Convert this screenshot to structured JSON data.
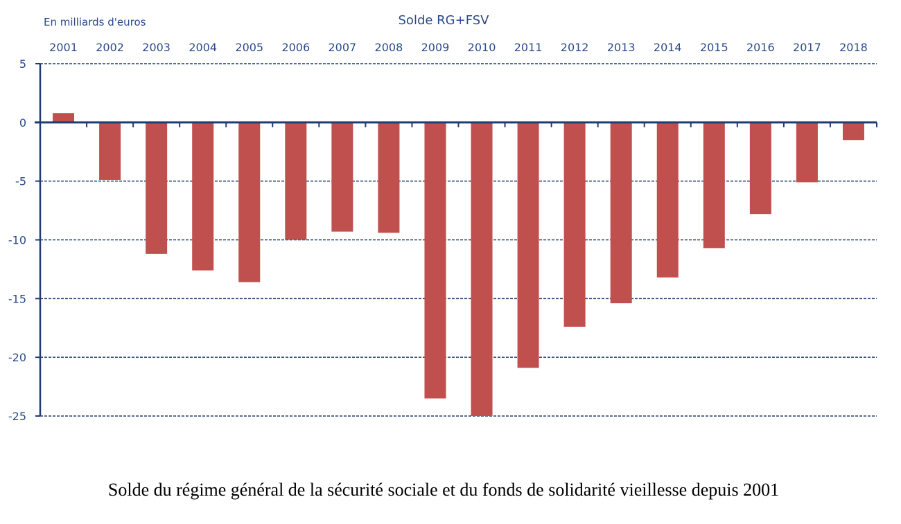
{
  "chart_data": {
    "type": "bar",
    "title": "Solde RG+FSV",
    "ylabel": "En milliards d'euros",
    "xlabel": "",
    "caption": "Solde du régime général de la sécurité sociale et du fonds de solidarité vieillesse depuis 2001",
    "categories": [
      "2001",
      "2002",
      "2003",
      "2004",
      "2005",
      "2006",
      "2007",
      "2008",
      "2009",
      "2010",
      "2011",
      "2012",
      "2013",
      "2014",
      "2015",
      "2016",
      "2017",
      "2018"
    ],
    "values": [
      0.8,
      -4.9,
      -11.2,
      -12.6,
      -13.6,
      -10.0,
      -9.3,
      -9.4,
      -23.5,
      -25.0,
      -20.9,
      -17.4,
      -15.4,
      -13.2,
      -10.7,
      -7.8,
      -5.1,
      -1.5
    ],
    "ylim": [
      -25,
      5
    ],
    "yticks": [
      5,
      0,
      -5,
      -10,
      -15,
      -20,
      -25
    ],
    "grid": "horizontal dashed",
    "x_tick_labels_position": "top",
    "colors": {
      "bar": "#C0504D",
      "axis": "#1F3B73",
      "text": "#2B4A8A"
    }
  }
}
